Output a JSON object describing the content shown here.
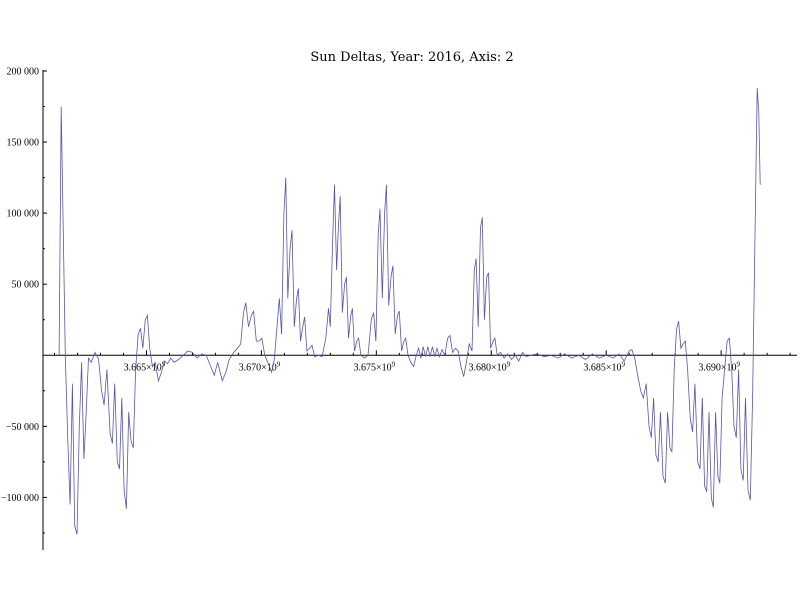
{
  "chart_data": {
    "type": "line",
    "title": "Sun Deltas, Year: 2016, Axis: 2",
    "xlabel": "",
    "ylabel": "",
    "xlim": [
      3660500000,
      3693300000
    ],
    "ylim": [
      -137000,
      200000
    ],
    "grid": false,
    "y_ticks": [
      {
        "value": 200000,
        "label": "200 000"
      },
      {
        "value": 150000,
        "label": "150 000"
      },
      {
        "value": 100000,
        "label": "100 000"
      },
      {
        "value": 50000,
        "label": "50 000"
      },
      {
        "value": -50000,
        "label": "−50 000"
      },
      {
        "value": -100000,
        "label": "−100 000"
      }
    ],
    "x_ticks": [
      {
        "value": 3665000000,
        "mantissa": "3.665",
        "exp": "9"
      },
      {
        "value": 3670000000,
        "mantissa": "3.670",
        "exp": "9"
      },
      {
        "value": 3675000000,
        "mantissa": "3.675",
        "exp": "9"
      },
      {
        "value": 3680000000,
        "mantissa": "3.680",
        "exp": "9"
      },
      {
        "value": 3685000000,
        "mantissa": "3.685",
        "exp": "9"
      },
      {
        "value": 3690000000,
        "mantissa": "3.690",
        "exp": "9"
      }
    ],
    "series": [
      {
        "color": "#5555b0",
        "points": [
          [
            3661200000,
            0
          ],
          [
            3661290000,
            175000
          ],
          [
            3661380000,
            90000
          ],
          [
            3661470000,
            0
          ],
          [
            3661580000,
            -60000
          ],
          [
            3661680000,
            -105000
          ],
          [
            3661780000,
            -20000
          ],
          [
            3661880000,
            -120000
          ],
          [
            3661980000,
            -126000
          ],
          [
            3662080000,
            -50000
          ],
          [
            3662180000,
            -5000
          ],
          [
            3662280000,
            -73000
          ],
          [
            3662380000,
            -40000
          ],
          [
            3662480000,
            -2000
          ],
          [
            3662600000,
            -5000
          ],
          [
            3662760000,
            2000
          ],
          [
            3662920000,
            -3000
          ],
          [
            3663050000,
            -25000
          ],
          [
            3663160000,
            -35000
          ],
          [
            3663280000,
            -10000
          ],
          [
            3663420000,
            -55000
          ],
          [
            3663520000,
            -62000
          ],
          [
            3663620000,
            -20000
          ],
          [
            3663730000,
            -75000
          ],
          [
            3663830000,
            -80000
          ],
          [
            3663930000,
            -30000
          ],
          [
            3664030000,
            -95000
          ],
          [
            3664130000,
            -108000
          ],
          [
            3664230000,
            -40000
          ],
          [
            3664330000,
            -60000
          ],
          [
            3664430000,
            -65000
          ],
          [
            3664530000,
            -10000
          ],
          [
            3664640000,
            15000
          ],
          [
            3664740000,
            19000
          ],
          [
            3664840000,
            5000
          ],
          [
            3664950000,
            25000
          ],
          [
            3665040000,
            28000
          ],
          [
            3665140000,
            5000
          ],
          [
            3665260000,
            -8000
          ],
          [
            3665380000,
            -5000
          ],
          [
            3665520000,
            -18000
          ],
          [
            3665650000,
            -12000
          ],
          [
            3665780000,
            -4000
          ],
          [
            3665920000,
            -6000
          ],
          [
            3666050000,
            -2000
          ],
          [
            3666200000,
            -5000
          ],
          [
            3666400000,
            -3000
          ],
          [
            3666600000,
            0
          ],
          [
            3666800000,
            3000
          ],
          [
            3667000000,
            2000
          ],
          [
            3667200000,
            -2000
          ],
          [
            3667400000,
            1000
          ],
          [
            3667600000,
            0
          ],
          [
            3667800000,
            -8000
          ],
          [
            3667950000,
            -14000
          ],
          [
            3668100000,
            -5000
          ],
          [
            3668300000,
            -18000
          ],
          [
            3668450000,
            -12000
          ],
          [
            3668600000,
            -3000
          ],
          [
            3668800000,
            2000
          ],
          [
            3668960000,
            5000
          ],
          [
            3669100000,
            8000
          ],
          [
            3669220000,
            30000
          ],
          [
            3669320000,
            37000
          ],
          [
            3669440000,
            20000
          ],
          [
            3669560000,
            28000
          ],
          [
            3669660000,
            31000
          ],
          [
            3669780000,
            10000
          ],
          [
            3669900000,
            10000
          ],
          [
            3670020000,
            12000
          ],
          [
            3670150000,
            0
          ],
          [
            3670300000,
            -6000
          ],
          [
            3670450000,
            -12000
          ],
          [
            3670560000,
            -3000
          ],
          [
            3670680000,
            20000
          ],
          [
            3670780000,
            40000
          ],
          [
            3670880000,
            15000
          ],
          [
            3670980000,
            100000
          ],
          [
            3671060000,
            125000
          ],
          [
            3671150000,
            40000
          ],
          [
            3671250000,
            75000
          ],
          [
            3671330000,
            88000
          ],
          [
            3671430000,
            20000
          ],
          [
            3671530000,
            40000
          ],
          [
            3671610000,
            47000
          ],
          [
            3671700000,
            10000
          ],
          [
            3671800000,
            20000
          ],
          [
            3671880000,
            27000
          ],
          [
            3671980000,
            3000
          ],
          [
            3672100000,
            5000
          ],
          [
            3672200000,
            7000
          ],
          [
            3672320000,
            -1000
          ],
          [
            3672480000,
            0
          ],
          [
            3672640000,
            -1000
          ],
          [
            3672800000,
            12000
          ],
          [
            3672920000,
            33000
          ],
          [
            3673000000,
            20000
          ],
          [
            3673100000,
            80000
          ],
          [
            3673180000,
            120000
          ],
          [
            3673270000,
            60000
          ],
          [
            3673350000,
            90000
          ],
          [
            3673430000,
            112000
          ],
          [
            3673520000,
            30000
          ],
          [
            3673620000,
            50000
          ],
          [
            3673700000,
            55000
          ],
          [
            3673790000,
            12000
          ],
          [
            3673890000,
            28000
          ],
          [
            3673960000,
            33000
          ],
          [
            3674050000,
            3000
          ],
          [
            3674150000,
            10000
          ],
          [
            3674230000,
            12000
          ],
          [
            3674330000,
            0
          ],
          [
            3674480000,
            -2000
          ],
          [
            3674640000,
            0
          ],
          [
            3674780000,
            25000
          ],
          [
            3674880000,
            30000
          ],
          [
            3674980000,
            10000
          ],
          [
            3675080000,
            85000
          ],
          [
            3675160000,
            103000
          ],
          [
            3675260000,
            40000
          ],
          [
            3675360000,
            100000
          ],
          [
            3675440000,
            120000
          ],
          [
            3675540000,
            35000
          ],
          [
            3675640000,
            55000
          ],
          [
            3675720000,
            63000
          ],
          [
            3675820000,
            15000
          ],
          [
            3675920000,
            28000
          ],
          [
            3676000000,
            31000
          ],
          [
            3676100000,
            3000
          ],
          [
            3676200000,
            10000
          ],
          [
            3676280000,
            12000
          ],
          [
            3676380000,
            0
          ],
          [
            3676500000,
            -5000
          ],
          [
            3676620000,
            -8000
          ],
          [
            3676740000,
            0
          ],
          [
            3676840000,
            5000
          ],
          [
            3676940000,
            -2000
          ],
          [
            3677040000,
            6000
          ],
          [
            3677140000,
            -1000
          ],
          [
            3677240000,
            6000
          ],
          [
            3677340000,
            -1000
          ],
          [
            3677440000,
            6000
          ],
          [
            3677540000,
            -1000
          ],
          [
            3677640000,
            5000
          ],
          [
            3677740000,
            -1000
          ],
          [
            3677860000,
            4000
          ],
          [
            3677980000,
            0
          ],
          [
            3678100000,
            12000
          ],
          [
            3678200000,
            14000
          ],
          [
            3678320000,
            2000
          ],
          [
            3678440000,
            5000
          ],
          [
            3678560000,
            3000
          ],
          [
            3678680000,
            -8000
          ],
          [
            3678800000,
            -15000
          ],
          [
            3678920000,
            -5000
          ],
          [
            3679040000,
            8000
          ],
          [
            3679160000,
            3000
          ],
          [
            3679260000,
            60000
          ],
          [
            3679340000,
            68000
          ],
          [
            3679430000,
            20000
          ],
          [
            3679530000,
            90000
          ],
          [
            3679610000,
            97000
          ],
          [
            3679700000,
            25000
          ],
          [
            3679800000,
            55000
          ],
          [
            3679880000,
            58000
          ],
          [
            3679970000,
            5000
          ],
          [
            3680080000,
            10000
          ],
          [
            3680160000,
            12000
          ],
          [
            3680260000,
            0
          ],
          [
            3680400000,
            2000
          ],
          [
            3680560000,
            -2000
          ],
          [
            3680720000,
            1000
          ],
          [
            3680880000,
            -3000
          ],
          [
            3681040000,
            0
          ],
          [
            3681200000,
            -4000
          ],
          [
            3681360000,
            2000
          ],
          [
            3681520000,
            -1000
          ],
          [
            3681700000,
            0
          ],
          [
            3682000000,
            1000
          ],
          [
            3682300000,
            -1000
          ],
          [
            3682600000,
            0
          ],
          [
            3682900000,
            -2000
          ],
          [
            3683200000,
            1000
          ],
          [
            3683500000,
            -2000
          ],
          [
            3683800000,
            0
          ],
          [
            3684100000,
            -3000
          ],
          [
            3684400000,
            1000
          ],
          [
            3684700000,
            -2000
          ],
          [
            3685000000,
            0
          ],
          [
            3685300000,
            -2000
          ],
          [
            3685560000,
            1000
          ],
          [
            3685780000,
            -4000
          ],
          [
            3686000000,
            3000
          ],
          [
            3686120000,
            4000
          ],
          [
            3686240000,
            -2000
          ],
          [
            3686380000,
            -15000
          ],
          [
            3686500000,
            -25000
          ],
          [
            3686620000,
            -30000
          ],
          [
            3686740000,
            -20000
          ],
          [
            3686860000,
            -50000
          ],
          [
            3686960000,
            -58000
          ],
          [
            3687060000,
            -30000
          ],
          [
            3687160000,
            -70000
          ],
          [
            3687260000,
            -75000
          ],
          [
            3687360000,
            -40000
          ],
          [
            3687470000,
            -85000
          ],
          [
            3687570000,
            -90000
          ],
          [
            3687670000,
            -40000
          ],
          [
            3687770000,
            -65000
          ],
          [
            3687860000,
            -68000
          ],
          [
            3687960000,
            -10000
          ],
          [
            3688060000,
            18000
          ],
          [
            3688150000,
            24000
          ],
          [
            3688250000,
            5000
          ],
          [
            3688350000,
            8000
          ],
          [
            3688440000,
            10000
          ],
          [
            3688540000,
            -10000
          ],
          [
            3688660000,
            -45000
          ],
          [
            3688760000,
            -54000
          ],
          [
            3688860000,
            -20000
          ],
          [
            3688980000,
            -75000
          ],
          [
            3689080000,
            -80000
          ],
          [
            3689180000,
            -30000
          ],
          [
            3689280000,
            -92000
          ],
          [
            3689370000,
            -96000
          ],
          [
            3689470000,
            -40000
          ],
          [
            3689570000,
            -100000
          ],
          [
            3689660000,
            -107000
          ],
          [
            3689760000,
            -40000
          ],
          [
            3689860000,
            -85000
          ],
          [
            3689940000,
            -90000
          ],
          [
            3690040000,
            -30000
          ],
          [
            3690150000,
            -10000
          ],
          [
            3690260000,
            10000
          ],
          [
            3690360000,
            12000
          ],
          [
            3690460000,
            -10000
          ],
          [
            3690560000,
            -50000
          ],
          [
            3690660000,
            -58000
          ],
          [
            3690760000,
            -10000
          ],
          [
            3690860000,
            -80000
          ],
          [
            3690960000,
            -88000
          ],
          [
            3691060000,
            -30000
          ],
          [
            3691170000,
            -95000
          ],
          [
            3691270000,
            -102000
          ],
          [
            3691370000,
            -30000
          ],
          [
            3691470000,
            80000
          ],
          [
            3691570000,
            188000
          ],
          [
            3691640000,
            170000
          ],
          [
            3691700000,
            120000
          ]
        ]
      }
    ]
  }
}
